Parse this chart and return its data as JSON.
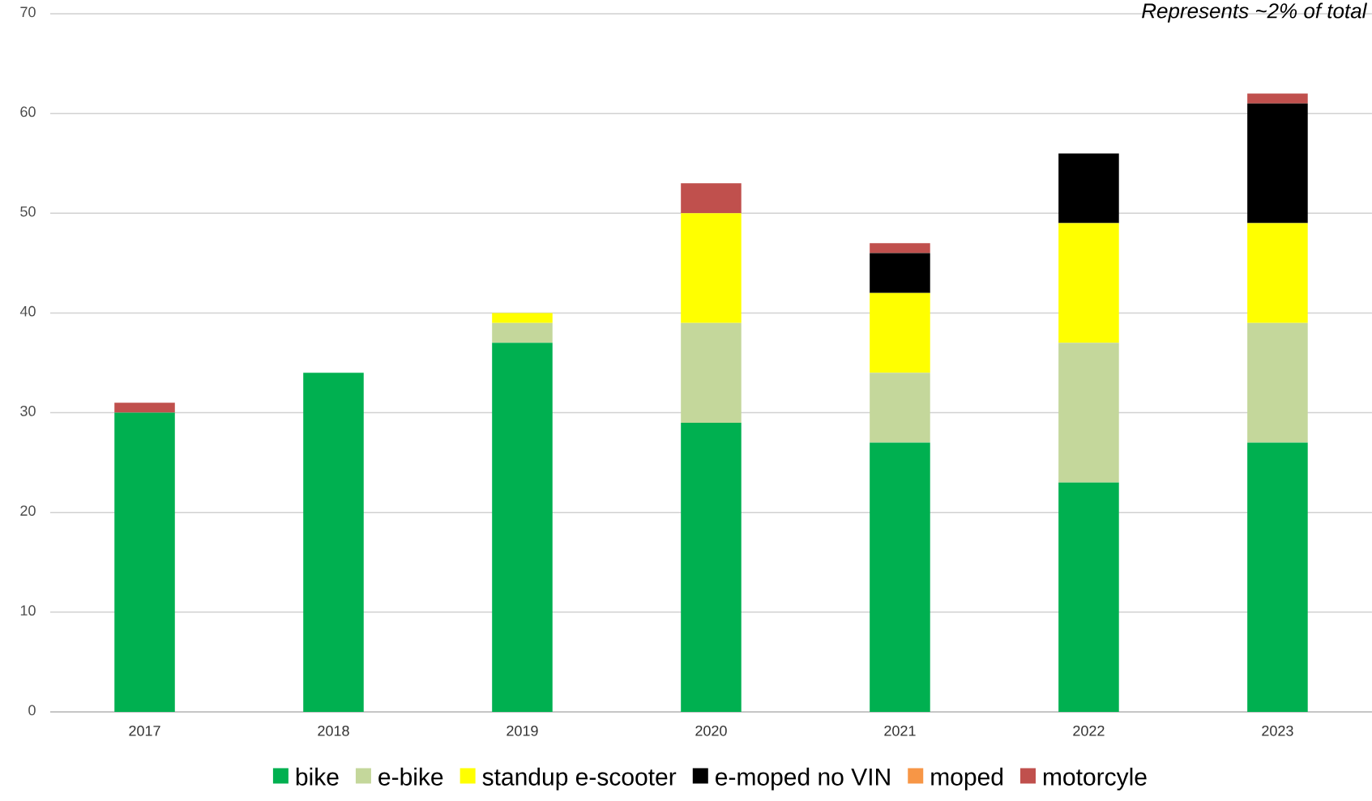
{
  "chart_data": {
    "type": "bar",
    "stacked": true,
    "categories": [
      "2017",
      "2018",
      "2019",
      "2020",
      "2021",
      "2022",
      "2023"
    ],
    "series": [
      {
        "name": "bike",
        "color": "#00b050",
        "values": [
          30,
          34,
          37,
          29,
          27,
          23,
          27
        ]
      },
      {
        "name": "e-bike",
        "color": "#c4d79b",
        "values": [
          0,
          0,
          2,
          10,
          7,
          14,
          12
        ]
      },
      {
        "name": "standup e-scooter",
        "color": "#ffff00",
        "values": [
          0,
          0,
          1,
          11,
          8,
          12,
          10
        ]
      },
      {
        "name": "e-moped no VIN",
        "color": "#000000",
        "values": [
          0,
          0,
          0,
          0,
          4,
          7,
          12
        ]
      },
      {
        "name": "moped",
        "color": "#f79646",
        "values": [
          0,
          0,
          0,
          0,
          0,
          0,
          0
        ]
      },
      {
        "name": "motorcyle",
        "color": "#c0504d",
        "values": [
          1,
          0,
          0,
          3,
          1,
          0,
          1
        ]
      }
    ],
    "ylim": [
      0,
      70
    ],
    "yticks": [
      0,
      10,
      20,
      30,
      40,
      50,
      60,
      70
    ],
    "grid": "y",
    "legend": "bottom",
    "annotations": [
      "Represents ~2% of total"
    ]
  }
}
